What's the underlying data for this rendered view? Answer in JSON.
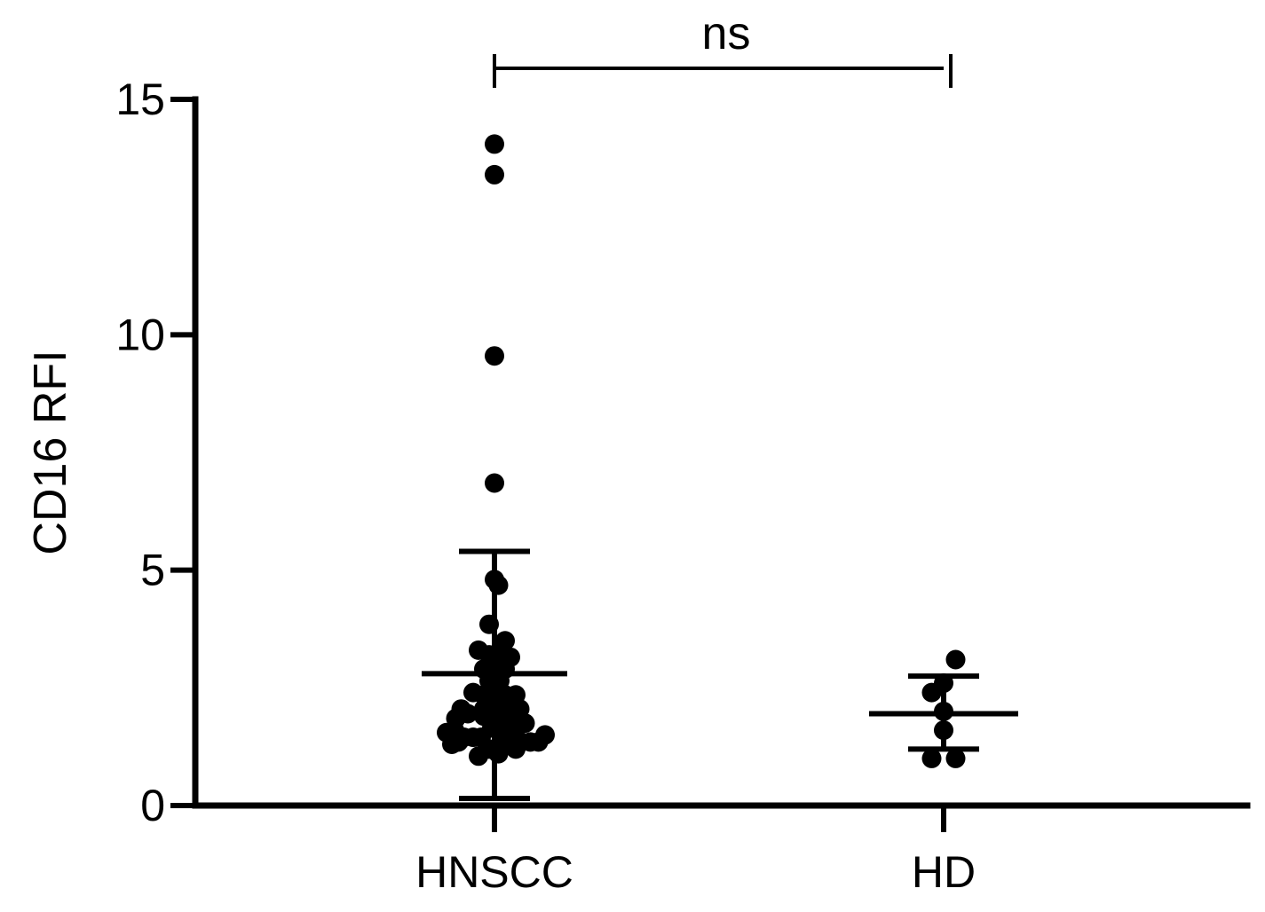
{
  "chart_data": {
    "type": "scatter",
    "ylabel": "CD16  RFI",
    "xlabel": "",
    "title": "",
    "ylim": [
      0,
      15
    ],
    "yticks": [
      0,
      5,
      10,
      15
    ],
    "ytick_labels": [
      "0",
      "5",
      "10",
      "15"
    ],
    "categories": [
      "HNSCC",
      "HD"
    ],
    "significance": {
      "label": "ns",
      "groups": [
        "HNSCC",
        "HD"
      ]
    },
    "colors": {
      "points": "#000000",
      "axes": "#000000",
      "background": "#ffffff"
    },
    "groups": [
      {
        "category": "HNSCC",
        "mean": 2.8,
        "sd_upper": 5.4,
        "sd_lower": 0.15,
        "points": [
          {
            "offset": 0.0,
            "y": 14.05
          },
          {
            "offset": 0.0,
            "y": 13.4
          },
          {
            "offset": 0.0,
            "y": 9.55
          },
          {
            "offset": 0.0,
            "y": 6.85
          },
          {
            "offset": 0.0,
            "y": 4.8
          },
          {
            "offset": 0.03,
            "y": 4.68
          },
          {
            "offset": -0.04,
            "y": 3.85
          },
          {
            "offset": 0.08,
            "y": 3.5
          },
          {
            "offset": -0.12,
            "y": 3.3
          },
          {
            "offset": -0.04,
            "y": 3.2
          },
          {
            "offset": 0.04,
            "y": 3.2
          },
          {
            "offset": 0.12,
            "y": 3.15
          },
          {
            "offset": -0.08,
            "y": 2.9
          },
          {
            "offset": 0.0,
            "y": 2.85
          },
          {
            "offset": 0.08,
            "y": 2.9
          },
          {
            "offset": -0.04,
            "y": 2.65
          },
          {
            "offset": 0.04,
            "y": 2.65
          },
          {
            "offset": -0.16,
            "y": 2.4
          },
          {
            "offset": 0.16,
            "y": 2.35
          },
          {
            "offset": -0.08,
            "y": 2.35
          },
          {
            "offset": 0.08,
            "y": 2.35
          },
          {
            "offset": -0.25,
            "y": 2.05
          },
          {
            "offset": -0.08,
            "y": 2.05
          },
          {
            "offset": 0.0,
            "y": 2.2
          },
          {
            "offset": 0.08,
            "y": 2.2
          },
          {
            "offset": 0.19,
            "y": 2.05
          },
          {
            "offset": -0.29,
            "y": 1.85
          },
          {
            "offset": -0.2,
            "y": 1.95
          },
          {
            "offset": -0.08,
            "y": 1.9
          },
          {
            "offset": 0.04,
            "y": 1.9
          },
          {
            "offset": 0.12,
            "y": 1.85
          },
          {
            "offset": 0.23,
            "y": 1.75
          },
          {
            "offset": -0.3,
            "y": 1.6
          },
          {
            "offset": -0.02,
            "y": 1.65
          },
          {
            "offset": 0.04,
            "y": 1.6
          },
          {
            "offset": 0.16,
            "y": 1.65
          },
          {
            "offset": -0.36,
            "y": 1.55
          },
          {
            "offset": -0.23,
            "y": 1.45
          },
          {
            "offset": -0.16,
            "y": 1.45
          },
          {
            "offset": -0.1,
            "y": 1.45
          },
          {
            "offset": 0.08,
            "y": 1.35
          },
          {
            "offset": 0.12,
            "y": 1.4
          },
          {
            "offset": 0.2,
            "y": 1.35
          },
          {
            "offset": 0.27,
            "y": 1.35
          },
          {
            "offset": 0.33,
            "y": 1.35
          },
          {
            "offset": 0.38,
            "y": 1.5
          },
          {
            "offset": -0.27,
            "y": 1.35
          },
          {
            "offset": -0.32,
            "y": 1.3
          },
          {
            "offset": -0.12,
            "y": 1.05
          },
          {
            "offset": -0.04,
            "y": 1.2
          },
          {
            "offset": 0.03,
            "y": 1.1
          },
          {
            "offset": 0.16,
            "y": 1.2
          }
        ]
      },
      {
        "category": "HD",
        "mean": 1.95,
        "sd_upper": 2.75,
        "sd_lower": 1.2,
        "points": [
          {
            "offset": 0.09,
            "y": 3.1
          },
          {
            "offset": 0.0,
            "y": 2.6
          },
          {
            "offset": -0.09,
            "y": 2.4
          },
          {
            "offset": 0.0,
            "y": 2.0
          },
          {
            "offset": 0.0,
            "y": 1.6
          },
          {
            "offset": -0.09,
            "y": 1.0
          },
          {
            "offset": 0.09,
            "y": 1.0
          }
        ]
      }
    ]
  }
}
